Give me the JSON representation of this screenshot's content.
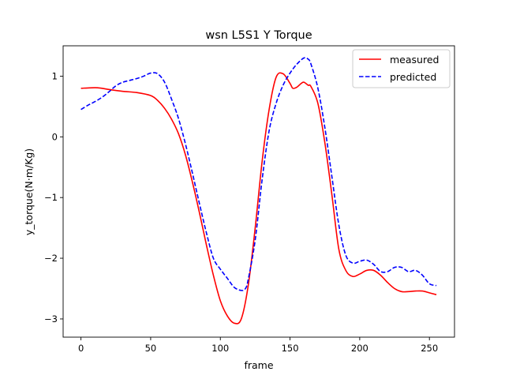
{
  "chart_data": {
    "type": "line",
    "title": "wsn L5S1 Y Torque",
    "xlabel": "frame",
    "ylabel": "y_torque(N·m/Kg)",
    "xlim": [
      -12.8,
      268
    ],
    "ylim": [
      -3.3,
      1.5
    ],
    "xticks": [
      0,
      50,
      100,
      150,
      200,
      250
    ],
    "yticks": [
      -3,
      -2,
      -1,
      0,
      1
    ],
    "ytick_labels": [
      "−3",
      "−2",
      "−1",
      "0",
      "1"
    ],
    "legend_position": "upper right",
    "grid": false,
    "series": [
      {
        "name": "measured",
        "color": "#ff0000",
        "style": "solid",
        "x": [
          0,
          10,
          15,
          20,
          30,
          40,
          50,
          55,
          60,
          65,
          70,
          75,
          80,
          85,
          90,
          95,
          100,
          105,
          110,
          115,
          120,
          125,
          130,
          135,
          140,
          145,
          150,
          152,
          155,
          158,
          160,
          163,
          165,
          170,
          175,
          180,
          185,
          190,
          195,
          200,
          205,
          210,
          215,
          220,
          225,
          230,
          235,
          240,
          245,
          250,
          255
        ],
        "y": [
          0.8,
          0.81,
          0.8,
          0.78,
          0.75,
          0.73,
          0.68,
          0.6,
          0.47,
          0.29,
          0.05,
          -0.3,
          -0.75,
          -1.25,
          -1.78,
          -2.28,
          -2.7,
          -2.95,
          -3.07,
          -3.0,
          -2.45,
          -1.5,
          -0.4,
          0.45,
          0.98,
          1.04,
          0.88,
          0.8,
          0.82,
          0.88,
          0.9,
          0.85,
          0.83,
          0.55,
          -0.1,
          -0.95,
          -1.85,
          -2.2,
          -2.3,
          -2.26,
          -2.2,
          -2.2,
          -2.28,
          -2.4,
          -2.5,
          -2.55,
          -2.55,
          -2.54,
          -2.54,
          -2.57,
          -2.6
        ]
      },
      {
        "name": "predicted",
        "color": "#0000ff",
        "style": "dashed",
        "x": [
          0,
          5,
          10,
          15,
          20,
          25,
          30,
          35,
          40,
          45,
          50,
          55,
          60,
          65,
          70,
          75,
          80,
          85,
          90,
          95,
          100,
          105,
          110,
          115,
          118,
          120,
          125,
          130,
          135,
          140,
          145,
          150,
          155,
          160,
          163,
          165,
          170,
          175,
          180,
          185,
          190,
          195,
          200,
          205,
          210,
          215,
          220,
          225,
          230,
          235,
          240,
          245,
          250,
          255
        ],
        "y": [
          0.45,
          0.52,
          0.58,
          0.65,
          0.74,
          0.84,
          0.9,
          0.93,
          0.96,
          1.0,
          1.05,
          1.04,
          0.9,
          0.62,
          0.3,
          -0.12,
          -0.6,
          -1.1,
          -1.58,
          -2.0,
          -2.18,
          -2.33,
          -2.48,
          -2.53,
          -2.5,
          -2.35,
          -1.7,
          -0.7,
          0.1,
          0.55,
          0.85,
          1.05,
          1.2,
          1.3,
          1.28,
          1.2,
          0.8,
          0.15,
          -0.65,
          -1.45,
          -1.95,
          -2.08,
          -2.05,
          -2.03,
          -2.1,
          -2.22,
          -2.22,
          -2.15,
          -2.15,
          -2.22,
          -2.2,
          -2.28,
          -2.42,
          -2.45
        ]
      }
    ]
  }
}
